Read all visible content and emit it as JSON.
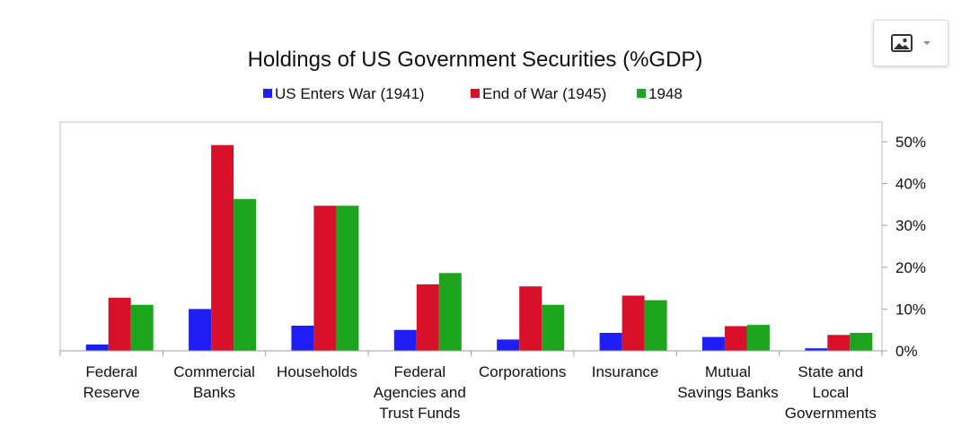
{
  "toolbar": {
    "image_menu_icon": "image-icon",
    "dropdown_icon": "chevron-down-icon"
  },
  "chart_data": {
    "type": "bar",
    "title": "Holdings of US Government Securities (%GDP)",
    "categories": [
      [
        "Federal",
        "Reserve"
      ],
      [
        "Commercial",
        "Banks"
      ],
      [
        "Households"
      ],
      [
        "Federal",
        "Agencies and",
        "Trust Funds"
      ],
      [
        "Corporations"
      ],
      [
        "Insurance"
      ],
      [
        "Mutual",
        "Savings Banks"
      ],
      [
        "State and",
        "Local",
        "Governments"
      ]
    ],
    "series": [
      {
        "name": "US Enters War (1941)",
        "color": "#1f1ff5",
        "values": [
          1.5,
          10,
          6,
          5,
          2.7,
          4.3,
          3.3,
          0.6
        ]
      },
      {
        "name": "End of War (1945)",
        "color": "#d9102a",
        "values": [
          12.7,
          49.2,
          34.7,
          15.9,
          15.4,
          13.2,
          5.9,
          3.8
        ]
      },
      {
        "name": "1948",
        "color": "#1ea51e",
        "values": [
          11,
          36.3,
          34.7,
          18.6,
          11,
          12.1,
          6.2,
          4.3
        ]
      }
    ],
    "ylim": [
      0,
      55
    ],
    "yticks": [
      0,
      10,
      20,
      30,
      40,
      50
    ],
    "ytick_labels": [
      "0%",
      "10%",
      "20%",
      "30%",
      "40%",
      "50%"
    ],
    "y_axis_side": "right",
    "legend_position": "top-center",
    "grid": false
  }
}
